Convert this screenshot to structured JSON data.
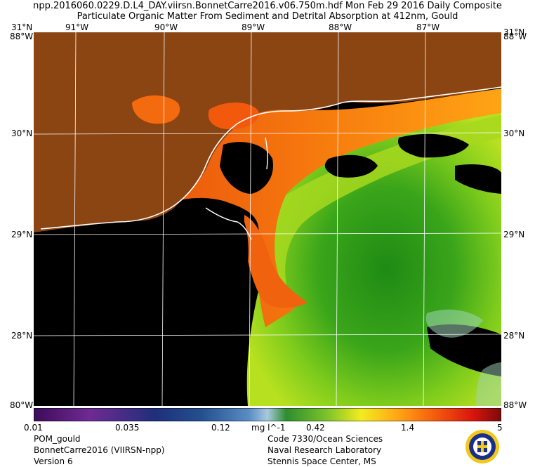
{
  "header": {
    "line1": "npp.2016060.0229.D.L4_DAY.viirsn.BonnetCarre2016.v06.750m.hdf    Mon Feb 29 2016 Daily Composite",
    "line2": "Particulate Organic Matter From Sediment and Detrital Absorption at 412nm, Gould"
  },
  "axes": {
    "lon_top": [
      "91°W",
      "90°W",
      "89°W",
      "88°W",
      "87°W"
    ],
    "lat_left": [
      "30°N",
      "29°N",
      "28°N"
    ],
    "lat_right": [
      "30°N",
      "29°N",
      "28°N"
    ],
    "corner_tl": "31°N",
    "corner_tl2": "88°W",
    "corner_tr": "31°N",
    "corner_tr2": "88°W",
    "corner_bl": "80°W",
    "corner_br": "88°W"
  },
  "colorbar": {
    "ticks": [
      "0.01",
      "0.035",
      "0.12",
      "0.42",
      "1.4",
      "5"
    ],
    "units": "mg l^-1"
  },
  "footer": {
    "left": [
      "POM_gould",
      "BonnetCarre2016 (VIIRSN-npp)",
      "Version 6"
    ],
    "right": [
      "Code 7330/Ocean Sciences",
      "Naval Research Laboratory",
      "Stennis Space Center, MS"
    ]
  },
  "colors": {
    "land": "#8b4513",
    "nodata": "#000000",
    "grid": "#ffffff",
    "coast": "#ffffff"
  }
}
